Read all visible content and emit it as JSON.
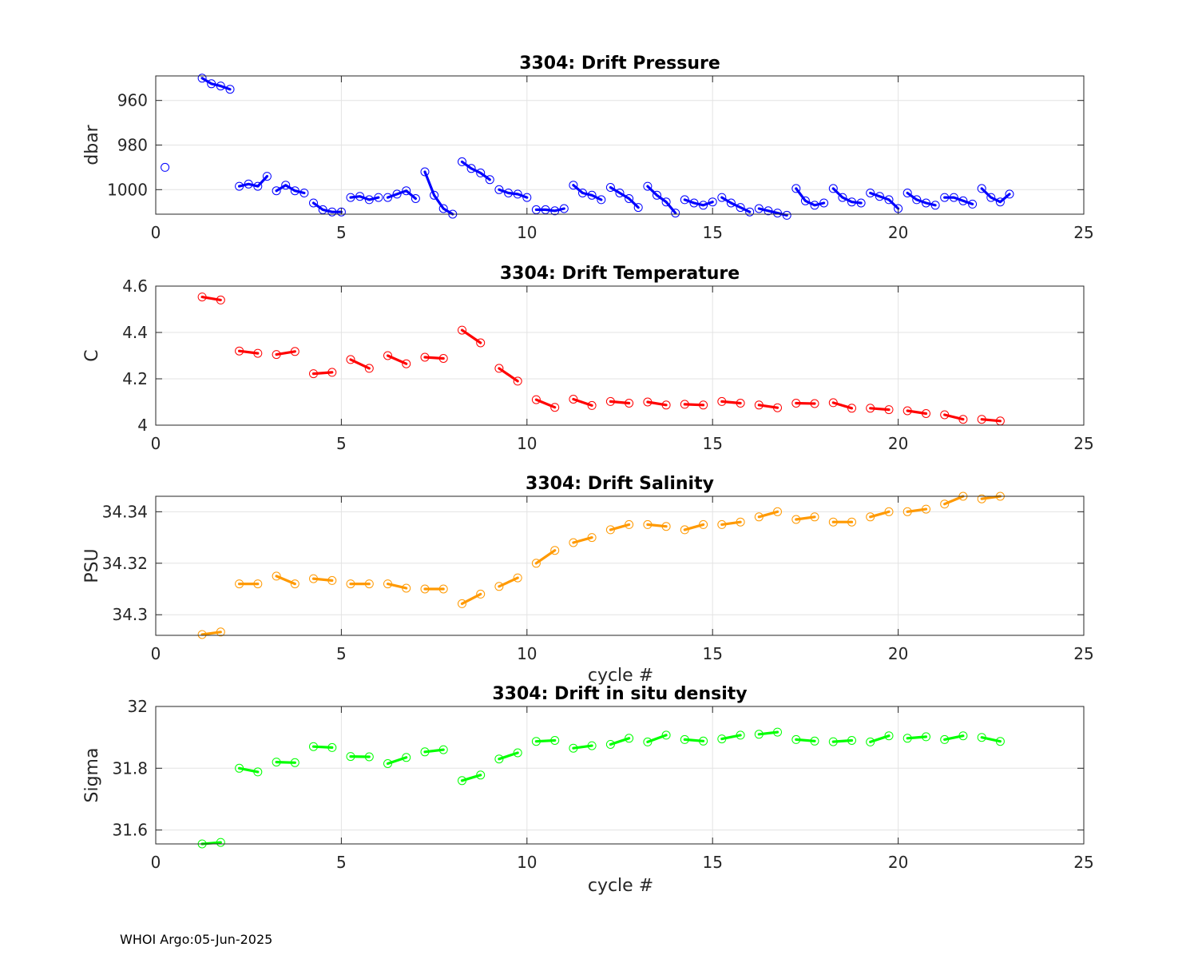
{
  "footer": "WHOI Argo:05-Jun-2025",
  "chart_data": [
    {
      "type": "line",
      "title": "3304: Drift Pressure",
      "xlabel": "",
      "ylabel": "dbar",
      "xlim": [
        0,
        25
      ],
      "ylim": [
        1011,
        949
      ],
      "y_reversed": true,
      "xticks": [
        0,
        5,
        10,
        15,
        20,
        25
      ],
      "yticks": [
        960,
        980,
        1000
      ],
      "ytick_labels": [
        "960",
        "980",
        "1000"
      ],
      "grid": true,
      "color": "#0000ff",
      "segments": [
        {
          "x": [
            0.25
          ],
          "y": [
            990
          ]
        },
        {
          "x": [
            1.25,
            1.5,
            1.75,
            2.0
          ],
          "y": [
            950,
            952.5,
            953.5,
            955
          ]
        },
        {
          "x": [
            2.25,
            2.5,
            2.75,
            3.0
          ],
          "y": [
            998.5,
            997.5,
            998.5,
            994
          ]
        },
        {
          "x": [
            3.25,
            3.5,
            3.75,
            4.0
          ],
          "y": [
            1000.5,
            998,
            1000.5,
            1001.5
          ]
        },
        {
          "x": [
            4.25,
            4.5,
            4.75,
            5.0
          ],
          "y": [
            1006,
            1009,
            1010,
            1010
          ]
        },
        {
          "x": [
            5.25,
            5.5,
            5.75,
            6.0
          ],
          "y": [
            1003.5,
            1003,
            1004.5,
            1003.5
          ]
        },
        {
          "x": [
            6.25,
            6.5,
            6.75,
            7.0
          ],
          "y": [
            1003.5,
            1002,
            1000.5,
            1004
          ]
        },
        {
          "x": [
            7.25,
            7.5,
            7.75,
            8.0
          ],
          "y": [
            992,
            1002.5,
            1008.5,
            1011
          ]
        },
        {
          "x": [
            8.25,
            8.5,
            8.75,
            9.0
          ],
          "y": [
            987.5,
            990.5,
            992.5,
            995.5
          ]
        },
        {
          "x": [
            9.25,
            9.5,
            9.75,
            10.0
          ],
          "y": [
            1000,
            1001.5,
            1002,
            1003.5
          ]
        },
        {
          "x": [
            10.25,
            10.5,
            10.75,
            11.0
          ],
          "y": [
            1009,
            1009,
            1009.5,
            1008.5
          ]
        },
        {
          "x": [
            11.25,
            11.5,
            11.75,
            12.0
          ],
          "y": [
            998,
            1001.5,
            1002.5,
            1004.5
          ]
        },
        {
          "x": [
            12.25,
            12.5,
            12.75,
            13.0
          ],
          "y": [
            999,
            1001.5,
            1004,
            1008
          ]
        },
        {
          "x": [
            13.25,
            13.5,
            13.75,
            14.0
          ],
          "y": [
            998.5,
            1002.5,
            1005.5,
            1010.5
          ]
        },
        {
          "x": [
            14.25,
            14.5,
            14.75,
            15.0
          ],
          "y": [
            1004.5,
            1006,
            1007,
            1005.5
          ]
        },
        {
          "x": [
            15.25,
            15.5,
            15.75,
            16.0
          ],
          "y": [
            1003.5,
            1006,
            1008,
            1010
          ]
        },
        {
          "x": [
            16.25,
            16.5,
            16.75,
            17.0
          ],
          "y": [
            1008.5,
            1009.5,
            1010.5,
            1011.5
          ]
        },
        {
          "x": [
            17.25,
            17.5,
            17.75,
            18.0
          ],
          "y": [
            999.5,
            1005,
            1007,
            1006
          ]
        },
        {
          "x": [
            18.25,
            18.5,
            18.75,
            19.0
          ],
          "y": [
            999.5,
            1003.5,
            1005.5,
            1006
          ]
        },
        {
          "x": [
            19.25,
            19.5,
            19.75,
            20.0
          ],
          "y": [
            1001.5,
            1003,
            1004.5,
            1008.5
          ]
        },
        {
          "x": [
            20.25,
            20.5,
            20.75,
            21.0
          ],
          "y": [
            1001.5,
            1004.5,
            1006,
            1007
          ]
        },
        {
          "x": [
            21.25,
            21.5,
            21.75,
            22.0
          ],
          "y": [
            1003.5,
            1003.5,
            1005,
            1006.5
          ]
        },
        {
          "x": [
            22.25,
            22.5,
            22.75,
            23.0
          ],
          "y": [
            999.5,
            1003.5,
            1005.5,
            1002
          ]
        }
      ]
    },
    {
      "type": "line",
      "title": "3304: Drift Temperature",
      "xlabel": "",
      "ylabel": "C",
      "xlim": [
        0,
        25
      ],
      "ylim": [
        4.0,
        4.6
      ],
      "y_reversed": false,
      "xticks": [
        0,
        5,
        10,
        15,
        20,
        25
      ],
      "yticks": [
        4.0,
        4.2,
        4.4,
        4.6
      ],
      "ytick_labels": [
        "4",
        "4.2",
        "4.4",
        "4.6"
      ],
      "grid": true,
      "color": "#ff0000",
      "segments": [
        {
          "x": [
            1.25,
            1.75
          ],
          "y": [
            4.553,
            4.54
          ]
        },
        {
          "x": [
            2.25,
            2.75
          ],
          "y": [
            4.32,
            4.31
          ]
        },
        {
          "x": [
            3.25,
            3.75
          ],
          "y": [
            4.305,
            4.318
          ]
        },
        {
          "x": [
            4.25,
            4.75
          ],
          "y": [
            4.222,
            4.228
          ]
        },
        {
          "x": [
            5.25,
            5.75
          ],
          "y": [
            4.283,
            4.245
          ]
        },
        {
          "x": [
            6.25,
            6.75
          ],
          "y": [
            4.3,
            4.265
          ]
        },
        {
          "x": [
            7.25,
            7.75
          ],
          "y": [
            4.293,
            4.288
          ]
        },
        {
          "x": [
            8.25,
            8.75
          ],
          "y": [
            4.41,
            4.355
          ]
        },
        {
          "x": [
            9.25,
            9.75
          ],
          "y": [
            4.245,
            4.19
          ]
        },
        {
          "x": [
            10.25,
            10.75
          ],
          "y": [
            4.11,
            4.077
          ]
        },
        {
          "x": [
            11.25,
            11.75
          ],
          "y": [
            4.112,
            4.085
          ]
        },
        {
          "x": [
            12.25,
            12.75
          ],
          "y": [
            4.102,
            4.095
          ]
        },
        {
          "x": [
            13.25,
            13.75
          ],
          "y": [
            4.1,
            4.087
          ]
        },
        {
          "x": [
            14.25,
            14.75
          ],
          "y": [
            4.09,
            4.087
          ]
        },
        {
          "x": [
            15.25,
            15.75
          ],
          "y": [
            4.102,
            4.095
          ]
        },
        {
          "x": [
            16.25,
            16.75
          ],
          "y": [
            4.087,
            4.075
          ]
        },
        {
          "x": [
            17.25,
            17.75
          ],
          "y": [
            4.095,
            4.093
          ]
        },
        {
          "x": [
            18.25,
            18.75
          ],
          "y": [
            4.097,
            4.073
          ]
        },
        {
          "x": [
            19.25,
            19.75
          ],
          "y": [
            4.073,
            4.067
          ]
        },
        {
          "x": [
            20.25,
            20.75
          ],
          "y": [
            4.062,
            4.05
          ]
        },
        {
          "x": [
            21.25,
            21.75
          ],
          "y": [
            4.045,
            4.025
          ]
        },
        {
          "x": [
            22.25,
            22.75
          ],
          "y": [
            4.025,
            4.018
          ]
        }
      ]
    },
    {
      "type": "line",
      "title": "3304: Drift Salinity",
      "xlabel": "cycle #",
      "ylabel": "PSU",
      "xlim": [
        0,
        25
      ],
      "ylim": [
        34.292,
        34.346
      ],
      "y_reversed": false,
      "xticks": [
        0,
        5,
        10,
        15,
        20,
        25
      ],
      "yticks": [
        34.3,
        34.32,
        34.34
      ],
      "ytick_labels": [
        "34.3",
        "34.32",
        "34.34"
      ],
      "grid": true,
      "color": "#ff9900",
      "segments": [
        {
          "x": [
            1.25,
            1.75
          ],
          "y": [
            34.2923,
            34.2933
          ]
        },
        {
          "x": [
            2.25,
            2.75
          ],
          "y": [
            34.312,
            34.312
          ]
        },
        {
          "x": [
            3.25,
            3.75
          ],
          "y": [
            34.315,
            34.312
          ]
        },
        {
          "x": [
            4.25,
            4.75
          ],
          "y": [
            34.314,
            34.3133
          ]
        },
        {
          "x": [
            5.25,
            5.75
          ],
          "y": [
            34.312,
            34.312
          ]
        },
        {
          "x": [
            6.25,
            6.75
          ],
          "y": [
            34.312,
            34.3103
          ]
        },
        {
          "x": [
            7.25,
            7.75
          ],
          "y": [
            34.31,
            34.31
          ]
        },
        {
          "x": [
            8.25,
            8.75
          ],
          "y": [
            34.3043,
            34.308
          ]
        },
        {
          "x": [
            9.25,
            9.75
          ],
          "y": [
            34.311,
            34.3143
          ]
        },
        {
          "x": [
            10.25,
            10.75
          ],
          "y": [
            34.32,
            34.325
          ]
        },
        {
          "x": [
            11.25,
            11.75
          ],
          "y": [
            34.328,
            34.33
          ]
        },
        {
          "x": [
            12.25,
            12.75
          ],
          "y": [
            34.333,
            34.335
          ]
        },
        {
          "x": [
            13.25,
            13.75
          ],
          "y": [
            34.335,
            34.3343
          ]
        },
        {
          "x": [
            14.25,
            14.75
          ],
          "y": [
            34.333,
            34.335
          ]
        },
        {
          "x": [
            15.25,
            15.75
          ],
          "y": [
            34.335,
            34.336
          ]
        },
        {
          "x": [
            16.25,
            16.75
          ],
          "y": [
            34.338,
            34.34
          ]
        },
        {
          "x": [
            17.25,
            17.75
          ],
          "y": [
            34.337,
            34.338
          ]
        },
        {
          "x": [
            18.25,
            18.75
          ],
          "y": [
            34.336,
            34.336
          ]
        },
        {
          "x": [
            19.25,
            19.75
          ],
          "y": [
            34.338,
            34.34
          ]
        },
        {
          "x": [
            20.25,
            20.75
          ],
          "y": [
            34.34,
            34.341
          ]
        },
        {
          "x": [
            21.25,
            21.75
          ],
          "y": [
            34.343,
            34.346
          ]
        },
        {
          "x": [
            22.25,
            22.75
          ],
          "y": [
            34.345,
            34.346
          ]
        }
      ]
    },
    {
      "type": "line",
      "title": "3304: Drift in situ density",
      "xlabel": "cycle #",
      "ylabel": "Sigma",
      "xlim": [
        0,
        25
      ],
      "ylim": [
        31.555,
        32.0
      ],
      "y_reversed": false,
      "xticks": [
        0,
        5,
        10,
        15,
        20,
        25
      ],
      "yticks": [
        31.6,
        31.8,
        32.0
      ],
      "ytick_labels": [
        "31.6",
        "31.8",
        "32"
      ],
      "grid": true,
      "color": "#00ff00",
      "segments": [
        {
          "x": [
            1.25,
            1.75
          ],
          "y": [
            31.555,
            31.56
          ]
        },
        {
          "x": [
            2.25,
            2.75
          ],
          "y": [
            31.8,
            31.788
          ]
        },
        {
          "x": [
            3.25,
            3.75
          ],
          "y": [
            31.82,
            31.818
          ]
        },
        {
          "x": [
            4.25,
            4.75
          ],
          "y": [
            31.87,
            31.867
          ]
        },
        {
          "x": [
            5.25,
            5.75
          ],
          "y": [
            31.838,
            31.837
          ]
        },
        {
          "x": [
            6.25,
            6.75
          ],
          "y": [
            31.815,
            31.835
          ]
        },
        {
          "x": [
            7.25,
            7.75
          ],
          "y": [
            31.853,
            31.86
          ]
        },
        {
          "x": [
            8.25,
            8.75
          ],
          "y": [
            31.76,
            31.778
          ]
        },
        {
          "x": [
            9.25,
            9.75
          ],
          "y": [
            31.83,
            31.85
          ]
        },
        {
          "x": [
            10.25,
            10.75
          ],
          "y": [
            31.887,
            31.89
          ]
        },
        {
          "x": [
            11.25,
            11.75
          ],
          "y": [
            31.865,
            31.873
          ]
        },
        {
          "x": [
            12.25,
            12.75
          ],
          "y": [
            31.877,
            31.897
          ]
        },
        {
          "x": [
            13.25,
            13.75
          ],
          "y": [
            31.885,
            31.907
          ]
        },
        {
          "x": [
            14.25,
            14.75
          ],
          "y": [
            31.893,
            31.888
          ]
        },
        {
          "x": [
            15.25,
            15.75
          ],
          "y": [
            31.895,
            31.907
          ]
        },
        {
          "x": [
            16.25,
            16.75
          ],
          "y": [
            31.91,
            31.917
          ]
        },
        {
          "x": [
            17.25,
            17.75
          ],
          "y": [
            31.893,
            31.888
          ]
        },
        {
          "x": [
            18.25,
            18.75
          ],
          "y": [
            31.886,
            31.89
          ]
        },
        {
          "x": [
            19.25,
            19.75
          ],
          "y": [
            31.885,
            31.905
          ]
        },
        {
          "x": [
            20.25,
            20.75
          ],
          "y": [
            31.897,
            31.902
          ]
        },
        {
          "x": [
            21.25,
            21.75
          ],
          "y": [
            31.893,
            31.905
          ]
        },
        {
          "x": [
            22.25,
            22.75
          ],
          "y": [
            31.9,
            31.887
          ]
        }
      ]
    }
  ]
}
